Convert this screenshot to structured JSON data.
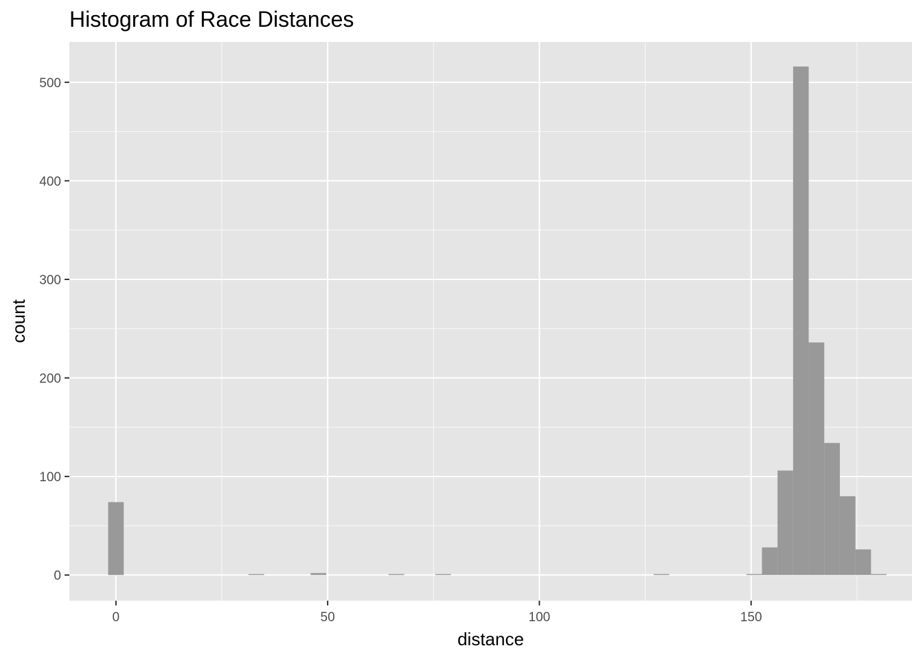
{
  "chart_data": {
    "type": "bar",
    "title": "Histogram of Race Distances",
    "xlabel": "distance",
    "ylabel": "count",
    "xlim": [
      -11,
      188
    ],
    "ylim": [
      -26,
      541
    ],
    "x_ticks": [
      0,
      50,
      100,
      150
    ],
    "x_minor_ticks": [
      25,
      75,
      125,
      175
    ],
    "y_ticks": [
      0,
      100,
      200,
      300,
      400,
      500
    ],
    "y_minor_ticks": [
      50,
      150,
      250,
      350,
      450
    ],
    "grid": true,
    "panel_color": "#e5e5e5",
    "bar_color": "#999999",
    "grid_color": "#ffffff",
    "tick_text_color": "#4d4d4d",
    "bins": [
      {
        "x0": -1.84,
        "x1": 1.84,
        "count": 74
      },
      {
        "x0": 31.3,
        "x1": 34.98,
        "count": 1
      },
      {
        "x0": 45.98,
        "x1": 49.66,
        "count": 2
      },
      {
        "x0": 64.39,
        "x1": 68.07,
        "count": 1
      },
      {
        "x0": 75.44,
        "x1": 79.12,
        "count": 1
      },
      {
        "x0": 126.98,
        "x1": 130.66,
        "count": 1
      },
      {
        "x0": 148.88,
        "x1": 152.56,
        "count": 1
      },
      {
        "x0": 152.56,
        "x1": 156.24,
        "count": 28
      },
      {
        "x0": 156.24,
        "x1": 159.92,
        "count": 106
      },
      {
        "x0": 159.92,
        "x1": 163.6,
        "count": 516
      },
      {
        "x0": 163.6,
        "x1": 167.28,
        "count": 236
      },
      {
        "x0": 167.28,
        "x1": 170.96,
        "count": 134
      },
      {
        "x0": 170.96,
        "x1": 174.64,
        "count": 80
      },
      {
        "x0": 174.64,
        "x1": 178.32,
        "count": 26
      },
      {
        "x0": 178.32,
        "x1": 182.0,
        "count": 1
      }
    ]
  }
}
